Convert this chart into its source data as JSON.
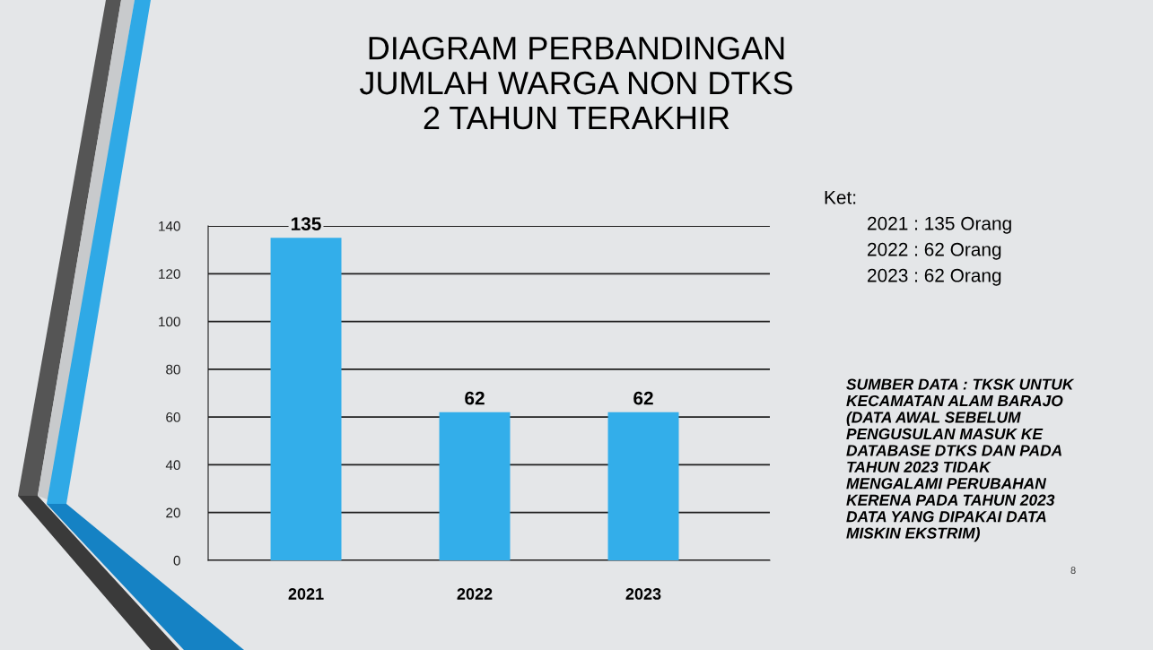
{
  "chart_data": {
    "type": "bar",
    "title": "DIAGRAM PERBANDINGAN\nJUMLAH WARGA NON DTKS\n2 TAHUN TERAKHIR",
    "categories": [
      "2021",
      "2022",
      "2023"
    ],
    "values": [
      135,
      62,
      62
    ],
    "color": "#33aeea",
    "ylim": [
      0,
      140
    ],
    "yticks": [
      0,
      20,
      40,
      60,
      80,
      100,
      120,
      140
    ],
    "grid": "y",
    "data_labels": true,
    "annotations": [
      "Ket:",
      "2021 : 135 Orang",
      "2022 : 62 Orang",
      "2023 : 62 Orang",
      "SUMBER DATA : TKSK UNTUK\nKECAMATAN ALAM BARAJO\n(DATA AWAL SEBELUM\nPENGUSULAN MASUK KE\nDATABASE DTKS DAN PADA\nTAHUN 2023 TIDAK\nMENGALAMI PERUBAHAN\nKERENA PADA TAHUN 2023\nDATA YANG DIPAKAI DATA\nMISKIN EKSTRIM)",
      "8"
    ]
  }
}
